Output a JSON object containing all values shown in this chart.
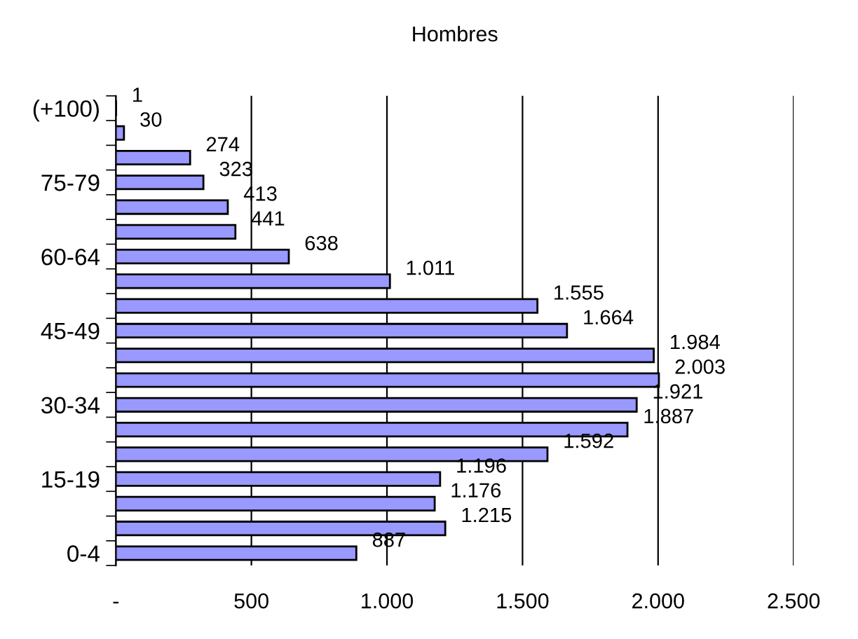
{
  "chart_data": {
    "type": "bar",
    "orientation": "horizontal",
    "title": "Hombres",
    "categories": [
      "(+100)",
      null,
      null,
      "75-79",
      null,
      null,
      "60-64",
      null,
      null,
      "45-49",
      null,
      null,
      "30-34",
      null,
      null,
      "15-19",
      null,
      null,
      "0-4"
    ],
    "values": [
      1,
      30,
      274,
      323,
      413,
      441,
      638,
      1011,
      1555,
      1664,
      1984,
      2003,
      1921,
      1887,
      1592,
      1196,
      1176,
      1215,
      887
    ],
    "value_labels": [
      "1",
      "30",
      "274",
      "323",
      "413",
      "441",
      "638",
      "1.011",
      "1.555",
      "1.664",
      "1.984",
      "2.003",
      "1.921",
      "1.887",
      "1.592",
      "1.196",
      "1.176",
      "1.215",
      "887"
    ],
    "color": "#9999ff",
    "xlim": [
      0,
      2500
    ],
    "xticks": [
      {
        "value": 0,
        "label": "-"
      },
      {
        "value": 500,
        "label": "500"
      },
      {
        "value": 1000,
        "label": "1.000"
      },
      {
        "value": 1500,
        "label": "1.500"
      },
      {
        "value": 2000,
        "label": "2.000"
      },
      {
        "value": 2500,
        "label": "2.500"
      }
    ],
    "grid": "x",
    "legend": false
  }
}
